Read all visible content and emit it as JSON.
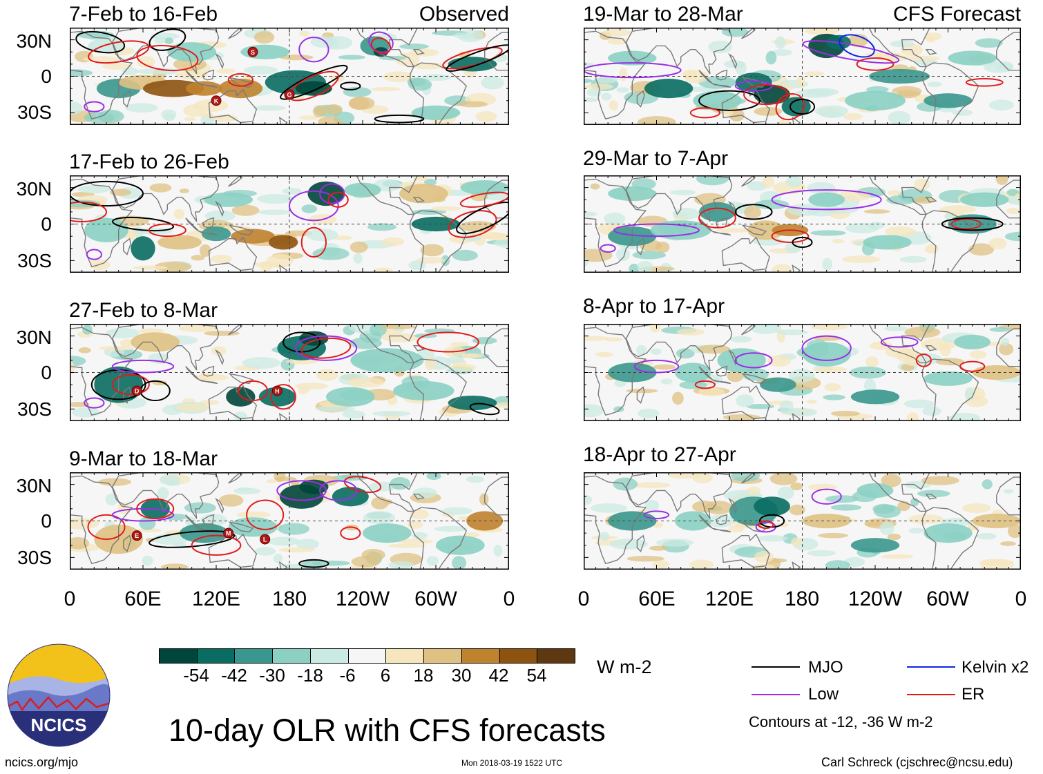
{
  "panels_left": [
    {
      "title": "7-Feb to 16-Feb",
      "tag": "Observed"
    },
    {
      "title": "17-Feb to 26-Feb",
      "tag": ""
    },
    {
      "title": "27-Feb to 8-Mar",
      "tag": ""
    },
    {
      "title": "9-Mar to 18-Mar",
      "tag": ""
    }
  ],
  "panels_right": [
    {
      "title": "19-Mar to 28-Mar",
      "tag": "CFS Forecast"
    },
    {
      "title": "29-Mar to 7-Apr",
      "tag": ""
    },
    {
      "title": "8-Apr to 17-Apr",
      "tag": ""
    },
    {
      "title": "18-Apr to 27-Apr",
      "tag": ""
    }
  ],
  "y_axis": {
    "north": "30N",
    "eq": "0",
    "south": "30S"
  },
  "x_axis": [
    "0",
    "60E",
    "120E",
    "180",
    "120W",
    "60W",
    "0"
  ],
  "storm_markers": [
    "S",
    "K",
    "G",
    "D",
    "H",
    "E",
    "M",
    "L"
  ],
  "colorbar": {
    "unit": "W m-2",
    "ticks": [
      "-54",
      "-42",
      "-30",
      "-18",
      "-6",
      "6",
      "18",
      "30",
      "42",
      "54"
    ],
    "colors": [
      "#01463a",
      "#0a6d62",
      "#3a978d",
      "#8bd0c3",
      "#cbeae3",
      "#f6f6f6",
      "#f5e6bd",
      "#dfc183",
      "#bf822f",
      "#8e5311",
      "#5e3810"
    ]
  },
  "legend": {
    "items": [
      {
        "label": "MJO",
        "color": "#000000"
      },
      {
        "label": "Kelvin x2",
        "color": "#0b25e8"
      },
      {
        "label": "Low",
        "color": "#9a2ee6"
      },
      {
        "label": "ER",
        "color": "#e21a1a"
      }
    ],
    "note": "Contours at -12, -36 W m-2"
  },
  "logo": {
    "text": "NCICS"
  },
  "title": "10-day OLR with CFS forecasts",
  "footer": {
    "url": "ncics.org/mjo",
    "timestamp": "Mon 2018-03-19 1522 UTC",
    "credit": "Carl Schreck (cjschrec@ncsu.edu)"
  }
}
